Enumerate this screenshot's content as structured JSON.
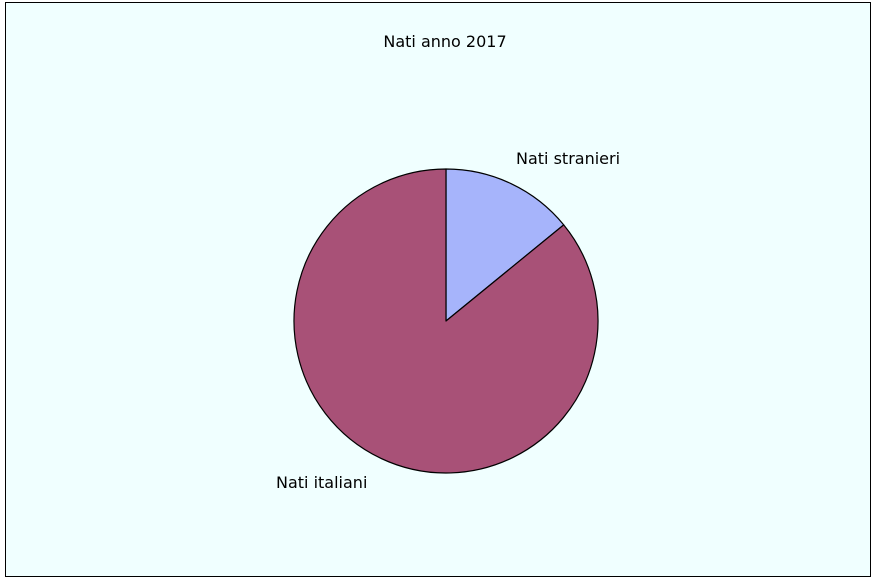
{
  "chart_data": {
    "type": "pie",
    "title": "Nati anno 2017",
    "slices": [
      {
        "label": "Nati stranieri",
        "value": 14.1,
        "color": "#a6b4fb"
      },
      {
        "label": "Nati italiani",
        "value": 85.9,
        "color": "#a85177"
      }
    ],
    "legend": "none",
    "background_color": "#f0ffff"
  }
}
